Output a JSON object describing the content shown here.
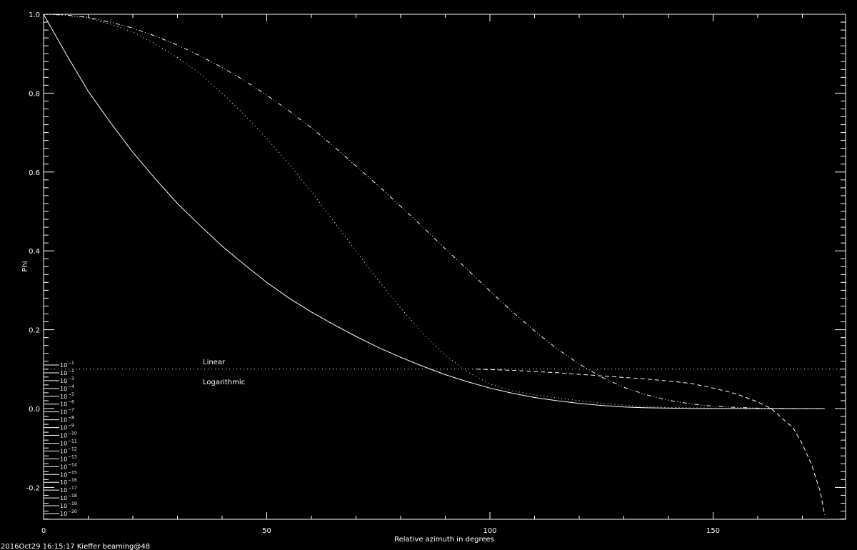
{
  "chart_data": {
    "type": "line",
    "title": "",
    "xlabel": "Relative azimuth in degrees",
    "ylabel": "Phi",
    "xlim": [
      0,
      180
    ],
    "ylim": [
      -0.28,
      1.0
    ],
    "x_ticks": [
      0,
      50,
      100,
      150
    ],
    "x_tick_labels": [
      "0",
      "50",
      "100",
      "150"
    ],
    "y_ticks": [
      -0.2,
      0.0,
      0.2,
      0.4,
      0.6,
      0.8,
      1.0
    ],
    "y_tick_labels": [
      "-0.2",
      "0.0",
      "0.2",
      "0.4",
      "0.6",
      "0.8",
      "1.0"
    ],
    "series": [
      {
        "name": "solid",
        "style": "solid",
        "x": [
          0,
          5,
          10,
          15,
          20,
          25,
          30,
          35,
          40,
          45,
          50,
          55,
          60,
          65,
          70,
          75,
          80,
          85,
          90,
          95,
          100,
          105,
          110,
          115,
          120,
          125,
          130,
          135,
          140,
          145,
          150,
          155,
          160,
          165,
          170,
          175
        ],
        "values": [
          1.0,
          0.9,
          0.805,
          0.725,
          0.65,
          0.583,
          0.52,
          0.465,
          0.412,
          0.365,
          0.32,
          0.28,
          0.245,
          0.213,
          0.183,
          0.155,
          0.13,
          0.107,
          0.086,
          0.068,
          0.052,
          0.039,
          0.028,
          0.02,
          0.013,
          0.008,
          0.004,
          0.002,
          0.001,
          0.0005,
          0.0002,
          0.0001,
          0.0,
          0.0,
          0.0,
          0.0
        ]
      },
      {
        "name": "dotted",
        "style": "dotted",
        "x": [
          0,
          5,
          10,
          15,
          20,
          25,
          30,
          35,
          40,
          45,
          50,
          55,
          60,
          65,
          70,
          75,
          80,
          85,
          90,
          95,
          100,
          105,
          110,
          115,
          120,
          125,
          130,
          135,
          140,
          145,
          150,
          155,
          160,
          165,
          170,
          175
        ],
        "values": [
          1.0,
          0.998,
          0.99,
          0.975,
          0.955,
          0.925,
          0.89,
          0.85,
          0.8,
          0.745,
          0.685,
          0.62,
          0.55,
          0.475,
          0.4,
          0.325,
          0.255,
          0.19,
          0.135,
          0.093,
          0.062,
          0.045,
          0.035,
          0.027,
          0.02,
          0.014,
          0.009,
          0.005,
          0.003,
          0.002,
          0.001,
          0.0005,
          0.0003,
          0.0001,
          0.0,
          0.0
        ]
      },
      {
        "name": "dash-dot",
        "style": "dashdot",
        "x": [
          0,
          5,
          10,
          15,
          20,
          25,
          30,
          35,
          40,
          45,
          50,
          55,
          60,
          65,
          70,
          75,
          80,
          85,
          90,
          95,
          100,
          105,
          110,
          115,
          120,
          125,
          130,
          135,
          140,
          145,
          150,
          155,
          160,
          165,
          170,
          175
        ],
        "values": [
          1.0,
          0.998,
          0.992,
          0.98,
          0.965,
          0.945,
          0.922,
          0.895,
          0.865,
          0.832,
          0.795,
          0.755,
          0.712,
          0.665,
          0.615,
          0.565,
          0.513,
          0.46,
          0.405,
          0.352,
          0.298,
          0.246,
          0.197,
          0.152,
          0.113,
          0.08,
          0.054,
          0.035,
          0.021,
          0.012,
          0.006,
          0.003,
          0.001,
          0.0005,
          0.0002,
          0.0001
        ]
      },
      {
        "name": "dashed",
        "style": "dashed",
        "x": [
          97,
          100,
          105,
          110,
          115,
          120,
          125,
          130,
          135,
          140,
          145,
          150,
          155,
          160,
          163,
          165,
          168,
          170,
          172,
          174,
          175
        ],
        "values": [
          0.1,
          0.099,
          0.097,
          0.094,
          0.091,
          0.087,
          0.083,
          0.079,
          0.075,
          0.07,
          0.064,
          0.052,
          0.038,
          0.017,
          0.0,
          -0.02,
          -0.05,
          -0.09,
          -0.14,
          -0.21,
          -0.27
        ]
      }
    ],
    "reference_line": {
      "value": 0.1,
      "style": "dotted"
    },
    "annotations": [
      "Linear",
      "Logarithmic"
    ],
    "log_scale_labels": [
      "10",
      "10",
      "10",
      "10",
      "10",
      "10",
      "10",
      "10",
      "10",
      "10",
      "10",
      "10",
      "10",
      "10",
      "10",
      "10",
      "10",
      "10",
      "10",
      "10"
    ],
    "log_scale_exponents": [
      "−1",
      "−2",
      "−3",
      "−4",
      "−5",
      "−6",
      "−7",
      "−8",
      "−9",
      "−10",
      "−11",
      "−12",
      "−13",
      "−14",
      "−15",
      "−16",
      "−17",
      "−18",
      "−19",
      "−20"
    ]
  },
  "footer": "2016Oct29 16:15:17 Kieffer beaming@48"
}
